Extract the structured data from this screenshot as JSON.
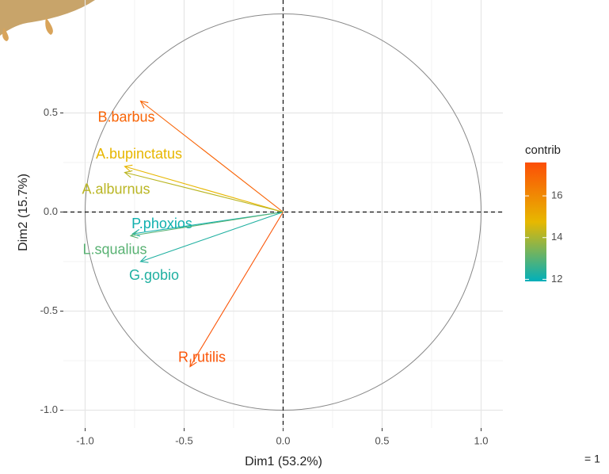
{
  "chart_data": {
    "type": "vector",
    "x_label": "Dim1 (53.2%)",
    "y_label": "Dim2 (15.7%)",
    "xlim": [
      -1.11,
      1.11
    ],
    "ylim": [
      -1.09,
      1.07
    ],
    "xticks": [
      {
        "value": -1,
        "label": "-1.0"
      },
      -0.5,
      {
        "value": 0,
        "label": "0.0"
      },
      0.5,
      {
        "value": 1,
        "label": "1.0"
      }
    ],
    "yticks": [
      {
        "value": -1,
        "label": "-1.0"
      },
      -0.5,
      {
        "value": 0,
        "label": "0.0"
      },
      0.5
    ],
    "grid": true,
    "series": [
      {
        "name": "B.barbus",
        "x": -0.72,
        "y": 0.56,
        "contrib": 17.0
      },
      {
        "name": "A.bupinctatus",
        "x": -0.8,
        "y": 0.23,
        "contrib": 14.8
      },
      {
        "name": "A.alburnus",
        "x": -0.8,
        "y": 0.2,
        "contrib": 14.2
      },
      {
        "name": "P.phoxios",
        "x": -0.76,
        "y": -0.11,
        "contrib": 12.1
      },
      {
        "name": "L.squalius",
        "x": -0.77,
        "y": -0.12,
        "contrib": 13.0
      },
      {
        "name": "G.gobio",
        "x": -0.72,
        "y": -0.25,
        "contrib": 12.3
      },
      {
        "name": "R.rutilis",
        "x": -0.47,
        "y": -0.78,
        "contrib": 17.4
      }
    ],
    "legend": {
      "title": "contrib",
      "colors": [
        "#00AFBB",
        "#E7B800",
        "#FC4E07"
      ],
      "lim": [
        11.9,
        17.6
      ],
      "ticks": [
        12,
        14,
        16
      ]
    },
    "annotation": "= 1"
  }
}
